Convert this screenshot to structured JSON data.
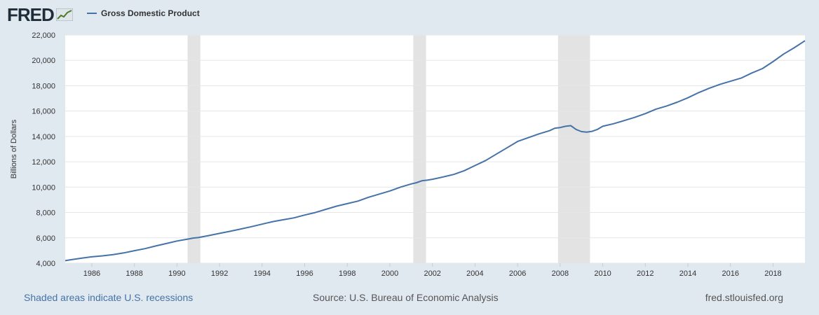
{
  "brand": {
    "name": "FRED",
    "icon": "trend-chart-icon"
  },
  "legend": {
    "label": "Gross Domestic Product",
    "color": "#4572a7"
  },
  "footer": {
    "recession_note": "Shaded areas indicate U.S. recessions",
    "source": "Source: U.S. Bureau of Economic Analysis",
    "site": "fred.stlouisfed.org"
  },
  "chart_data": {
    "type": "line",
    "title": "",
    "xlabel": "",
    "ylabel": "Billions of Dollars",
    "xlim": [
      1984.75,
      2019.5
    ],
    "ylim": [
      4000,
      22000
    ],
    "grid": true,
    "legend_position": "top-left",
    "line_color": "#4572a7",
    "recession_color": "#e3e3e3",
    "x_ticks": [
      1986,
      1988,
      1990,
      1992,
      1994,
      1996,
      1998,
      2000,
      2002,
      2004,
      2006,
      2008,
      2010,
      2012,
      2014,
      2016,
      2018
    ],
    "x_tick_labels": [
      "1986",
      "1988",
      "1990",
      "1992",
      "1994",
      "1996",
      "1998",
      "2000",
      "2002",
      "2004",
      "2006",
      "2008",
      "2010",
      "2012",
      "2014",
      "2016",
      "2018"
    ],
    "y_ticks": [
      4000,
      6000,
      8000,
      10000,
      12000,
      14000,
      16000,
      18000,
      20000,
      22000
    ],
    "y_tick_labels": [
      "4,000",
      "6,000",
      "8,000",
      "10,000",
      "12,000",
      "14,000",
      "16,000",
      "18,000",
      "20,000",
      "22,000"
    ],
    "recessions": [
      {
        "start": 1990.5,
        "end": 1991.1
      },
      {
        "start": 2001.1,
        "end": 2001.7
      },
      {
        "start": 2007.9,
        "end": 2009.4
      }
    ],
    "series": [
      {
        "name": "Gross Domestic Product",
        "x": [
          1984.75,
          1985.0,
          1985.5,
          1986.0,
          1986.5,
          1987.0,
          1987.5,
          1988.0,
          1988.5,
          1989.0,
          1989.5,
          1990.0,
          1990.5,
          1990.75,
          1991.0,
          1991.5,
          1992.0,
          1992.5,
          1993.0,
          1993.5,
          1994.0,
          1994.5,
          1995.0,
          1995.5,
          1996.0,
          1996.5,
          1997.0,
          1997.5,
          1998.0,
          1998.5,
          1999.0,
          1999.5,
          2000.0,
          2000.5,
          2001.0,
          2001.25,
          2001.5,
          2001.75,
          2002.0,
          2002.5,
          2003.0,
          2003.5,
          2004.0,
          2004.5,
          2005.0,
          2005.5,
          2006.0,
          2006.5,
          2007.0,
          2007.5,
          2007.75,
          2008.0,
          2008.25,
          2008.5,
          2008.75,
          2009.0,
          2009.25,
          2009.5,
          2009.75,
          2010.0,
          2010.5,
          2011.0,
          2011.5,
          2012.0,
          2012.5,
          2013.0,
          2013.5,
          2014.0,
          2014.5,
          2015.0,
          2015.5,
          2016.0,
          2016.5,
          2017.0,
          2017.5,
          2018.0,
          2018.5,
          2019.0,
          2019.5
        ],
        "values": [
          4200,
          4270,
          4390,
          4500,
          4580,
          4680,
          4810,
          4990,
          5150,
          5360,
          5550,
          5750,
          5900,
          5980,
          6020,
          6180,
          6350,
          6520,
          6700,
          6880,
          7080,
          7280,
          7430,
          7580,
          7800,
          8000,
          8250,
          8500,
          8700,
          8900,
          9200,
          9450,
          9700,
          10000,
          10250,
          10350,
          10500,
          10550,
          10620,
          10800,
          11000,
          11300,
          11700,
          12100,
          12600,
          13100,
          13600,
          13900,
          14200,
          14450,
          14650,
          14700,
          14800,
          14850,
          14550,
          14380,
          14340,
          14400,
          14550,
          14800,
          15000,
          15250,
          15500,
          15800,
          16150,
          16400,
          16700,
          17050,
          17450,
          17800,
          18100,
          18350,
          18600,
          19000,
          19350,
          19900,
          20500,
          21000,
          21550
        ]
      }
    ]
  }
}
